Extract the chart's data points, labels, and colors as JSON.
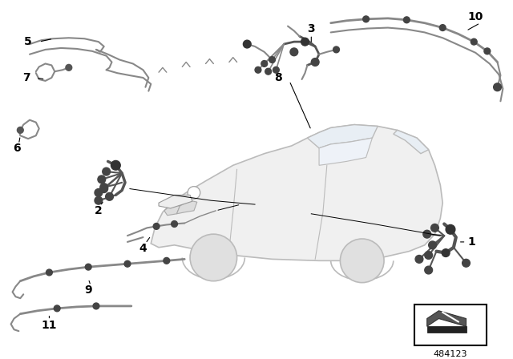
{
  "background_color": "#ffffff",
  "part_number": "484123",
  "line_color": "#888888",
  "dark_color": "#555555",
  "connector_color": "#444444",
  "text_color": "#000000",
  "fig_width": 6.4,
  "fig_height": 4.48,
  "dpi": 100,
  "car_face": "#f0f0f0",
  "car_edge": "#aaaaaa",
  "label_font": 10
}
